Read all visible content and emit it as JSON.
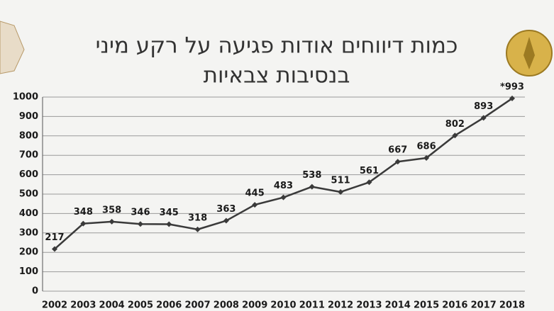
{
  "chart_data": {
    "type": "line",
    "title": [
      "כמות דיווחים אודות פגיעה על רקע מיני",
      "בנסיבות צבאיות"
    ],
    "categories": [
      "2002",
      "2003",
      "2004",
      "2005",
      "2006",
      "2007",
      "2008",
      "2009",
      "2010",
      "2011",
      "2012",
      "2013",
      "2014",
      "2015",
      "2016",
      "2017",
      "2018"
    ],
    "values": [
      217,
      348,
      358,
      346,
      345,
      318,
      363,
      445,
      483,
      538,
      511,
      561,
      667,
      686,
      802,
      893,
      993
    ],
    "value_labels": [
      "217",
      "348",
      "358",
      "346",
      "345",
      "318",
      "363",
      "445",
      "483",
      "538",
      "511",
      "561",
      "667",
      "686",
      "802",
      "893",
      "*993"
    ],
    "color": "#3a3a3a",
    "ylim": [
      0,
      1000
    ],
    "yticks": [
      0,
      100,
      200,
      300,
      400,
      500,
      600,
      700,
      800,
      900,
      1000
    ],
    "grid": true
  }
}
